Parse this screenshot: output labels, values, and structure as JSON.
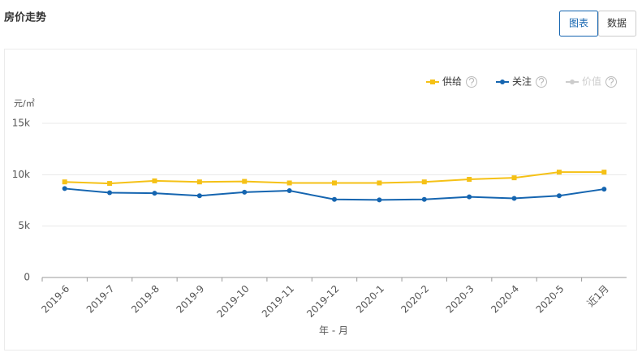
{
  "view_toggle": [
    "图表",
    "数据"
  ],
  "chart_data": {
    "type": "line",
    "title": "房价走势",
    "y_label": "元/㎡",
    "x_label": "年 - 月",
    "categories": [
      "2019-6",
      "2019-7",
      "2019-8",
      "2019-9",
      "2019-10",
      "2019-11",
      "2019-12",
      "2020-1",
      "2020-2",
      "2020-3",
      "2020-4",
      "2020-5",
      "近1月"
    ],
    "series": [
      {
        "name": "供给",
        "color": "#f5c116",
        "marker": "square",
        "values": [
          9300,
          9150,
          9400,
          9300,
          9350,
          9200,
          9200,
          9200,
          9300,
          9550,
          9700,
          10250,
          10250
        ]
      },
      {
        "name": "关注",
        "color": "#1565b0",
        "marker": "circle",
        "values": [
          8650,
          8250,
          8200,
          7950,
          8300,
          8450,
          7600,
          7550,
          7600,
          7850,
          7700,
          7950,
          8600
        ]
      },
      {
        "name": "价值",
        "color": "#cccccc",
        "marker": "circle",
        "disabled": true,
        "values": [
          null,
          null,
          null,
          null,
          null,
          null,
          null,
          null,
          null,
          null,
          null,
          null,
          null
        ]
      }
    ],
    "ylim": [
      0,
      15000
    ],
    "yticks": [
      0,
      {
        "value": 5000,
        "label": "5k"
      },
      {
        "value": 10000,
        "label": "10k"
      },
      {
        "value": 15000,
        "label": "15k"
      }
    ],
    "grid": true,
    "legend": "top-right"
  }
}
